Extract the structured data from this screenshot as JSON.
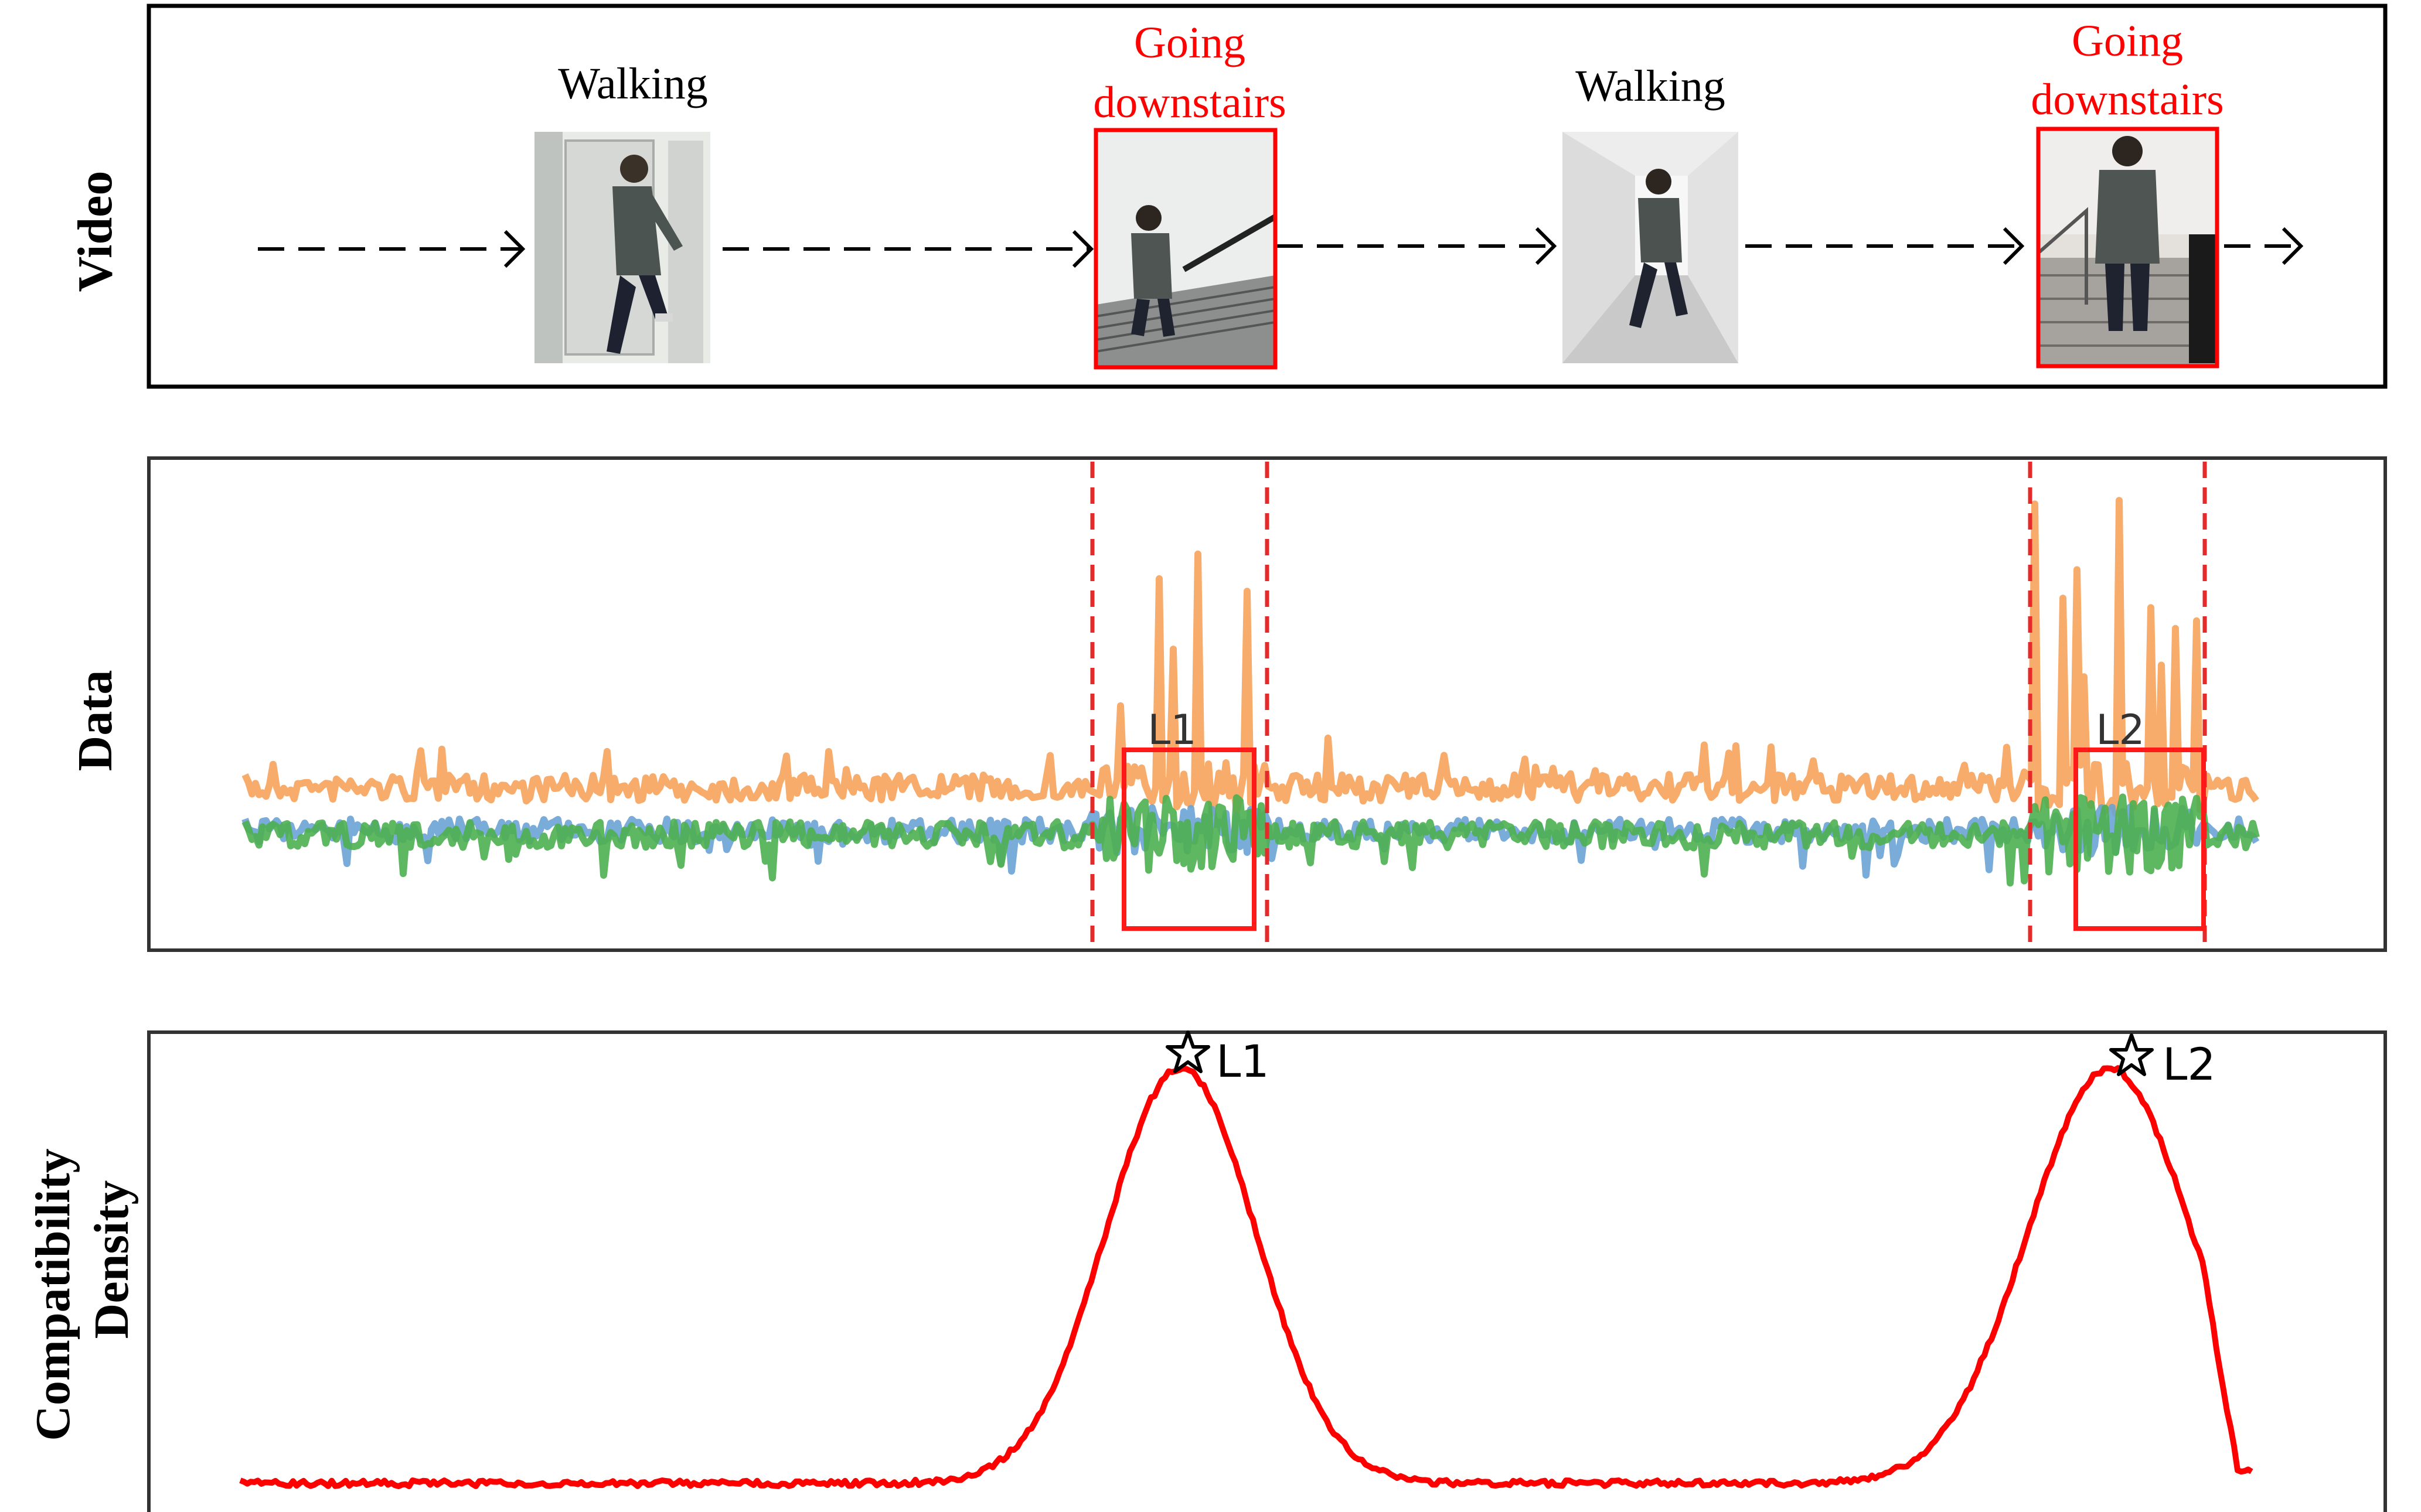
{
  "row_labels": {
    "video": "Video",
    "data": "Data",
    "density_line1": "Compatibility",
    "density_line2": "Density"
  },
  "video_panel": {
    "frames": [
      {
        "label_lines": [
          "Walking"
        ],
        "highlighted": false,
        "scene": "person-walking-through-doorway"
      },
      {
        "label_lines": [
          "Going",
          "downstairs"
        ],
        "highlighted": true,
        "scene": "person-going-downstairs"
      },
      {
        "label_lines": [
          "Walking"
        ],
        "highlighted": false,
        "scene": "person-walking-in-hallway"
      },
      {
        "label_lines": [
          "Going",
          "downstairs"
        ],
        "highlighted": true,
        "scene": "person-going-downstairs-back-view"
      }
    ]
  },
  "data_panel": {
    "windows": [
      {
        "label": "L1"
      },
      {
        "label": "L2"
      }
    ],
    "signal_colors": {
      "orange": "#f7a35c",
      "blue": "#6aa3d5",
      "green": "#4caf50"
    }
  },
  "density_panel": {
    "peaks": [
      {
        "label": "L1"
      },
      {
        "label": "L2"
      }
    ],
    "curve_color": "#ff0000"
  },
  "colors": {
    "highlight_red": "#ff0000",
    "frame_border": "#000000"
  }
}
